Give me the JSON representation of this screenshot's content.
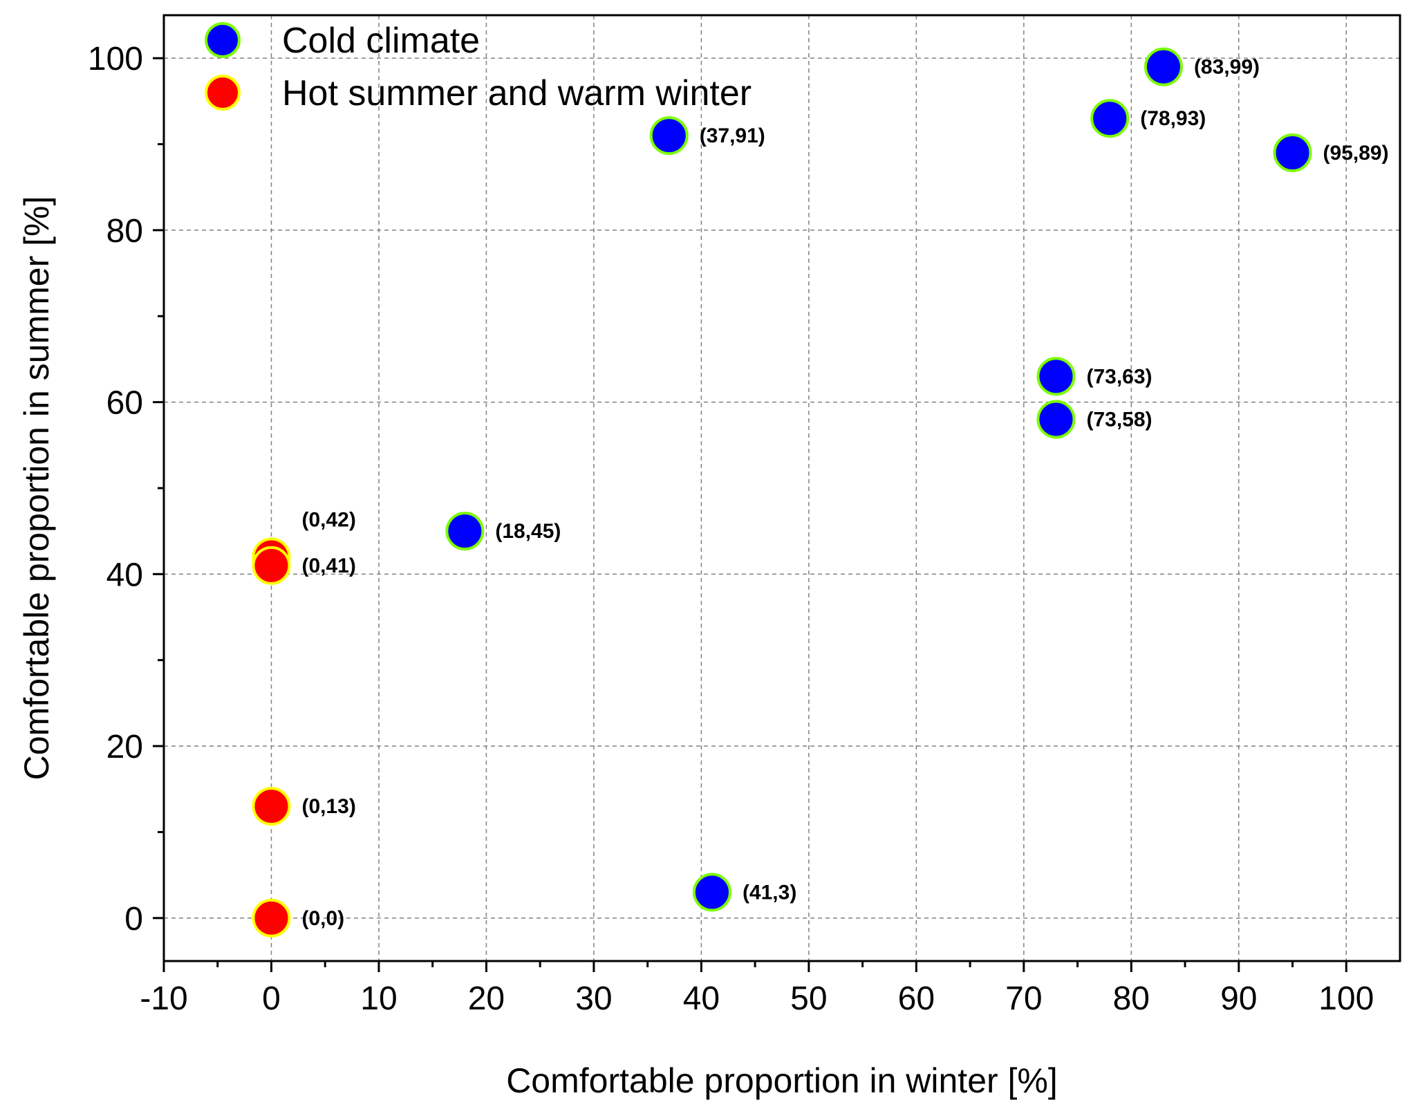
{
  "chart_data": {
    "type": "scatter",
    "xlabel": "Comfortable proportion in winter [%]",
    "ylabel": "Comfortable proportion in summer [%]",
    "xlim": [
      -10,
      105
    ],
    "ylim": [
      -5,
      105
    ],
    "x_ticks": [
      -10,
      0,
      10,
      20,
      30,
      40,
      50,
      60,
      70,
      80,
      90,
      100
    ],
    "x_tick_labels": [
      "-10",
      "0",
      "10",
      "20",
      "30",
      "40",
      "50",
      "60",
      "70",
      "80",
      "90",
      "100"
    ],
    "y_ticks": [
      0,
      20,
      40,
      60,
      80,
      100
    ],
    "y_tick_labels": [
      "0",
      "20",
      "40",
      "60",
      "80",
      "100"
    ],
    "grid": true,
    "legend_position": "top-left",
    "series": [
      {
        "name": "Cold climate",
        "fill": "#0000ff",
        "edge": "#7cfc00",
        "points": [
          {
            "x": 83,
            "y": 99,
            "label": "(83,99)"
          },
          {
            "x": 78,
            "y": 93,
            "label": "(78,93)"
          },
          {
            "x": 95,
            "y": 89,
            "label": "(95,89)"
          },
          {
            "x": 37,
            "y": 91,
            "label": "(37,91)"
          },
          {
            "x": 73,
            "y": 63,
            "label": "(73,63)"
          },
          {
            "x": 73,
            "y": 58,
            "label": "(73,58)"
          },
          {
            "x": 18,
            "y": 45,
            "label": "(18,45)"
          },
          {
            "x": 41,
            "y": 3,
            "label": "(41,3)"
          }
        ]
      },
      {
        "name": "Hot summer and warm winter",
        "fill": "#ff0000",
        "edge": "#ffff00",
        "points": [
          {
            "x": 0,
            "y": 42,
            "label": "(0,42)"
          },
          {
            "x": 0,
            "y": 41,
            "label": "(0,41)"
          },
          {
            "x": 0,
            "y": 13,
            "label": "(0,13)"
          },
          {
            "x": 0,
            "y": 0,
            "label": "(0,0)"
          }
        ]
      }
    ]
  }
}
